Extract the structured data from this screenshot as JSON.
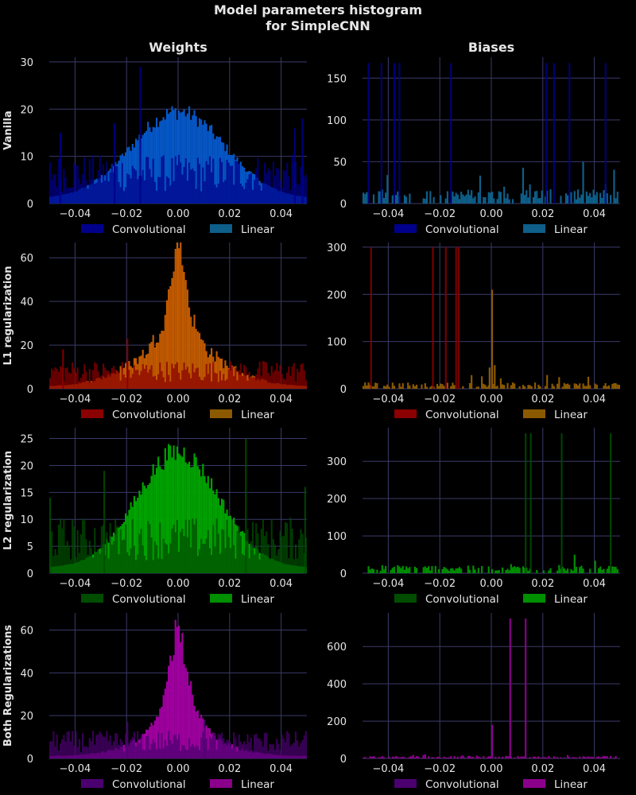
{
  "page": {
    "title_line1": "Model parameters histogram",
    "title_line2": "for SimpleCNN"
  },
  "columns": [
    "Weights",
    "Biases"
  ],
  "rows": [
    {
      "label": "Vanilla",
      "conv_color": "#00008b",
      "linear_color": "#0e5f8a",
      "conv_fill": "#00008b",
      "linear_fill": "#0557c8"
    },
    {
      "label": "L1 regularization",
      "conv_color": "#8b0000",
      "linear_color": "#8b5a00",
      "conv_fill": "#8b0000",
      "linear_fill": "#c25a00"
    },
    {
      "label": "L2 regularization",
      "conv_color": "#004d00",
      "linear_color": "#008f00",
      "conv_fill": "#004d00",
      "linear_fill": "#00a300"
    },
    {
      "label": "Both Regularizations",
      "conv_color": "#4b0070",
      "linear_color": "#8b008b",
      "conv_fill": "#4b0070",
      "linear_fill": "#a000a0"
    }
  ],
  "legend": {
    "conv": "Convolutional",
    "linear": "Linear"
  },
  "colors": {
    "background": "#000000",
    "grid": "#3a3a6a",
    "text": "#e6e6e6"
  },
  "chart_data": [
    {
      "type": "histogram",
      "row": "Vanilla",
      "column": "Weights",
      "xlim": [
        -0.05,
        0.05
      ],
      "ylim": [
        0,
        31
      ],
      "xticks": [
        -0.04,
        -0.02,
        0.0,
        0.02,
        0.04
      ],
      "yticks": [
        0,
        10,
        20,
        30
      ],
      "grid": true,
      "legend": "below",
      "series": [
        {
          "name": "Convolutional",
          "shape": "uniform",
          "level": 8,
          "spikes": [
            [
              -0.046,
              15
            ],
            [
              -0.025,
              17
            ],
            [
              -0.015,
              29
            ],
            [
              0.045,
              16
            ],
            [
              0.048,
              18
            ]
          ]
        },
        {
          "name": "Linear",
          "shape": "gaussian",
          "peak": 18.5,
          "sigma": 0.018
        }
      ]
    },
    {
      "type": "histogram",
      "row": "Vanilla",
      "column": "Biases",
      "xlim": [
        -0.05,
        0.05
      ],
      "ylim": [
        0,
        175
      ],
      "xticks": [
        -0.04,
        -0.02,
        0.0,
        0.02,
        0.04
      ],
      "yticks": [
        0,
        50,
        100,
        150
      ],
      "grid": true,
      "legend": "below",
      "series": [
        {
          "name": "Convolutional",
          "shape": "spikes",
          "spikes": [
            [
              -0.048,
              168
            ],
            [
              -0.043,
              168
            ],
            [
              -0.038,
              168
            ],
            [
              -0.036,
              168
            ],
            [
              -0.016,
              168
            ],
            [
              0.021,
              168
            ],
            [
              0.024,
              168
            ],
            [
              0.03,
              168
            ],
            [
              0.044,
              168
            ]
          ]
        },
        {
          "name": "Linear",
          "shape": "uniform-noisy",
          "level": 10,
          "max": 45
        }
      ]
    },
    {
      "type": "histogram",
      "row": "L1 regularization",
      "column": "Weights",
      "xlim": [
        -0.05,
        0.05
      ],
      "ylim": [
        0,
        67
      ],
      "xticks": [
        -0.04,
        -0.02,
        0.0,
        0.02,
        0.04
      ],
      "yticks": [
        0,
        20,
        40,
        60
      ],
      "grid": true,
      "legend": "below",
      "series": [
        {
          "name": "Convolutional",
          "shape": "uniform",
          "level": 10,
          "spikes": [
            [
              -0.02,
              23
            ],
            [
              -0.045,
              18
            ]
          ]
        },
        {
          "name": "Linear",
          "shape": "laplace",
          "peak": 63,
          "scale": 0.004,
          "base": 18
        }
      ]
    },
    {
      "type": "histogram",
      "row": "L1 regularization",
      "column": "Biases",
      "xlim": [
        -0.05,
        0.05
      ],
      "ylim": [
        0,
        310
      ],
      "xticks": [
        -0.04,
        -0.02,
        0.0,
        0.02,
        0.04
      ],
      "yticks": [
        0,
        100,
        200,
        300
      ],
      "grid": true,
      "legend": "below",
      "series": [
        {
          "name": "Convolutional",
          "shape": "spikes",
          "spikes": [
            [
              -0.047,
              300
            ],
            [
              -0.023,
              300
            ],
            [
              -0.018,
              300
            ],
            [
              -0.014,
              300
            ],
            [
              -0.013,
              300
            ]
          ]
        },
        {
          "name": "Linear",
          "shape": "uniform-noisy",
          "level": 8,
          "max": 30,
          "spikes": [
            [
              0.0,
              210
            ],
            [
              -0.001,
              45
            ],
            [
              0.001,
              50
            ]
          ]
        }
      ]
    },
    {
      "type": "histogram",
      "row": "L2 regularization",
      "column": "Weights",
      "xlim": [
        -0.05,
        0.05
      ],
      "ylim": [
        0,
        27
      ],
      "xticks": [
        -0.04,
        -0.02,
        0.0,
        0.02,
        0.04
      ],
      "yticks": [
        0,
        5,
        10,
        15,
        20,
        25
      ],
      "grid": true,
      "legend": "below",
      "series": [
        {
          "name": "Convolutional",
          "shape": "uniform",
          "level": 8,
          "spikes": [
            [
              -0.029,
              19
            ],
            [
              0.026,
              25
            ],
            [
              0.049,
              16
            ],
            [
              -0.05,
              14
            ]
          ]
        },
        {
          "name": "Linear",
          "shape": "gaussian",
          "peak": 21.5,
          "sigma": 0.016
        }
      ]
    },
    {
      "type": "histogram",
      "row": "L2 regularization",
      "column": "Biases",
      "xlim": [
        -0.05,
        0.05
      ],
      "ylim": [
        0,
        390
      ],
      "xticks": [
        -0.04,
        -0.02,
        0.0,
        0.02,
        0.04
      ],
      "yticks": [
        0,
        100,
        200,
        300
      ],
      "grid": true,
      "legend": "below",
      "series": [
        {
          "name": "Convolutional",
          "shape": "spikes",
          "spikes": [
            [
              0.013,
              375
            ],
            [
              0.015,
              375
            ],
            [
              0.027,
              375
            ],
            [
              0.046,
              375
            ]
          ]
        },
        {
          "name": "Linear",
          "shape": "uniform-noisy",
          "level": 12,
          "max": 45
        }
      ]
    },
    {
      "type": "histogram",
      "row": "Both Regularizations",
      "column": "Weights",
      "xlim": [
        -0.05,
        0.05
      ],
      "ylim": [
        0,
        68
      ],
      "xticks": [
        -0.04,
        -0.02,
        0.0,
        0.02,
        0.04
      ],
      "yticks": [
        0,
        20,
        40,
        60
      ],
      "grid": true,
      "legend": "below",
      "series": [
        {
          "name": "Convolutional",
          "shape": "uniform",
          "level": 10,
          "spikes": [
            [
              -0.02,
              17
            ],
            [
              0.01,
              18
            ]
          ]
        },
        {
          "name": "Linear",
          "shape": "laplace",
          "peak": 65,
          "scale": 0.005,
          "base": 8
        }
      ]
    },
    {
      "type": "histogram",
      "row": "Both Regularizations",
      "column": "Biases",
      "xlim": [
        -0.05,
        0.05
      ],
      "ylim": [
        0,
        780
      ],
      "xticks": [
        -0.04,
        -0.02,
        0.0,
        0.02,
        0.04
      ],
      "yticks": [
        0,
        200,
        400,
        600
      ],
      "grid": true,
      "legend": "below",
      "series": [
        {
          "name": "Convolutional",
          "shape": "spikes",
          "spikes": []
        },
        {
          "name": "Linear",
          "shape": "uniform-noisy",
          "level": 8,
          "max": 25,
          "spikes": [
            [
              0.0,
              180
            ],
            [
              0.007,
              750
            ],
            [
              0.013,
              750
            ]
          ]
        }
      ]
    }
  ]
}
